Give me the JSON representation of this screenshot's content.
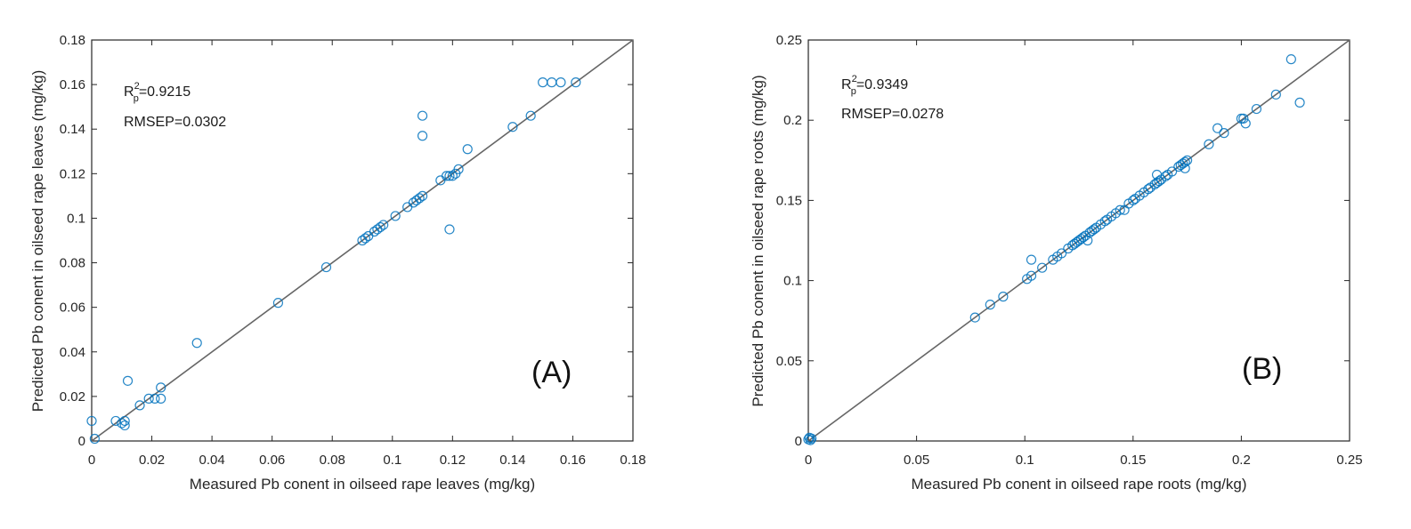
{
  "colors": {
    "marker": "#0072BD",
    "line": "#666666",
    "axis": "#262626"
  },
  "chart_data": [
    {
      "type": "scatter",
      "panel_label": "(A)",
      "xlabel": "Measured Pb conent in oilseed rape leaves (mg/kg)",
      "ylabel": "Predicted Pb conent in oilseed rape leaves (mg/kg)",
      "xlim": [
        0,
        0.18
      ],
      "ylim": [
        0,
        0.18
      ],
      "xticks": [
        0,
        0.02,
        0.04,
        0.06,
        0.08,
        0.1,
        0.12,
        0.14,
        0.16,
        0.18
      ],
      "yticks": [
        0,
        0.02,
        0.04,
        0.06,
        0.08,
        0.1,
        0.12,
        0.14,
        0.16,
        0.18
      ],
      "tick_labels": [
        "0",
        "0.02",
        "0.04",
        "0.06",
        "0.08",
        "0.1",
        "0.12",
        "0.14",
        "0.16",
        "0.18"
      ],
      "r2_label": "R",
      "r2_sup": "2",
      "r2_sub": "p",
      "r2_value": "=0.9215",
      "rmsep": "RMSEP=0.0302",
      "reference_line": "y = x",
      "points": [
        [
          0,
          0.009
        ],
        [
          0.001,
          0.001
        ],
        [
          0.008,
          0.009
        ],
        [
          0.01,
          0.008
        ],
        [
          0.011,
          0.007
        ],
        [
          0.011,
          0.009
        ],
        [
          0.012,
          0.027
        ],
        [
          0.016,
          0.016
        ],
        [
          0.019,
          0.019
        ],
        [
          0.021,
          0.019
        ],
        [
          0.023,
          0.019
        ],
        [
          0.023,
          0.024
        ],
        [
          0.035,
          0.044
        ],
        [
          0.062,
          0.062
        ],
        [
          0.078,
          0.078
        ],
        [
          0.09,
          0.09
        ],
        [
          0.091,
          0.091
        ],
        [
          0.092,
          0.092
        ],
        [
          0.094,
          0.094
        ],
        [
          0.095,
          0.095
        ],
        [
          0.096,
          0.096
        ],
        [
          0.097,
          0.097
        ],
        [
          0.101,
          0.101
        ],
        [
          0.105,
          0.105
        ],
        [
          0.107,
          0.107
        ],
        [
          0.108,
          0.108
        ],
        [
          0.109,
          0.109
        ],
        [
          0.11,
          0.11
        ],
        [
          0.11,
          0.146
        ],
        [
          0.11,
          0.137
        ],
        [
          0.116,
          0.117
        ],
        [
          0.118,
          0.119
        ],
        [
          0.119,
          0.095
        ],
        [
          0.119,
          0.119
        ],
        [
          0.12,
          0.119
        ],
        [
          0.121,
          0.12
        ],
        [
          0.122,
          0.122
        ],
        [
          0.125,
          0.131
        ],
        [
          0.14,
          0.141
        ],
        [
          0.146,
          0.146
        ],
        [
          0.15,
          0.161
        ],
        [
          0.153,
          0.161
        ],
        [
          0.156,
          0.161
        ],
        [
          0.161,
          0.161
        ]
      ]
    },
    {
      "type": "scatter",
      "panel_label": "(B)",
      "xlabel": "Measured Pb conent in oilseed rape roots (mg/kg)",
      "ylabel": "Predicted Pb conent in oilseed rape roots (mg/kg)",
      "xlim": [
        0,
        0.25
      ],
      "ylim": [
        0,
        0.25
      ],
      "xticks": [
        0,
        0.05,
        0.1,
        0.15,
        0.2,
        0.25
      ],
      "yticks": [
        0,
        0.05,
        0.1,
        0.15,
        0.2,
        0.25
      ],
      "tick_labels": [
        "0",
        "0.05",
        "0.1",
        "0.15",
        "0.2",
        "0.25"
      ],
      "r2_label": "R",
      "r2_sup": "2",
      "r2_sub": "p",
      "r2_value": "=0.9349",
      "rmsep": "RMSEP=0.0278",
      "reference_line": "y = x",
      "points": [
        [
          0,
          0.001
        ],
        [
          0.0005,
          0.002
        ],
        [
          0.001,
          0.0005
        ],
        [
          0.0015,
          0.0015
        ],
        [
          0.077,
          0.077
        ],
        [
          0.084,
          0.085
        ],
        [
          0.09,
          0.09
        ],
        [
          0.101,
          0.101
        ],
        [
          0.103,
          0.103
        ],
        [
          0.103,
          0.113
        ],
        [
          0.108,
          0.108
        ],
        [
          0.113,
          0.113
        ],
        [
          0.115,
          0.115
        ],
        [
          0.117,
          0.117
        ],
        [
          0.12,
          0.12
        ],
        [
          0.122,
          0.122
        ],
        [
          0.123,
          0.123
        ],
        [
          0.124,
          0.124
        ],
        [
          0.125,
          0.125
        ],
        [
          0.126,
          0.126
        ],
        [
          0.127,
          0.127
        ],
        [
          0.128,
          0.128
        ],
        [
          0.129,
          0.125
        ],
        [
          0.13,
          0.13
        ],
        [
          0.131,
          0.131
        ],
        [
          0.132,
          0.132
        ],
        [
          0.133,
          0.133
        ],
        [
          0.135,
          0.135
        ],
        [
          0.137,
          0.137
        ],
        [
          0.138,
          0.138
        ],
        [
          0.14,
          0.14
        ],
        [
          0.142,
          0.142
        ],
        [
          0.144,
          0.144
        ],
        [
          0.146,
          0.144
        ],
        [
          0.148,
          0.148
        ],
        [
          0.15,
          0.15
        ],
        [
          0.151,
          0.151
        ],
        [
          0.153,
          0.153
        ],
        [
          0.155,
          0.155
        ],
        [
          0.157,
          0.157
        ],
        [
          0.158,
          0.158
        ],
        [
          0.16,
          0.16
        ],
        [
          0.161,
          0.161
        ],
        [
          0.161,
          0.166
        ],
        [
          0.162,
          0.162
        ],
        [
          0.163,
          0.163
        ],
        [
          0.165,
          0.165
        ],
        [
          0.166,
          0.166
        ],
        [
          0.168,
          0.168
        ],
        [
          0.171,
          0.171
        ],
        [
          0.172,
          0.172
        ],
        [
          0.173,
          0.173
        ],
        [
          0.174,
          0.174
        ],
        [
          0.174,
          0.17
        ],
        [
          0.175,
          0.175
        ],
        [
          0.185,
          0.185
        ],
        [
          0.189,
          0.195
        ],
        [
          0.192,
          0.192
        ],
        [
          0.2,
          0.201
        ],
        [
          0.201,
          0.201
        ],
        [
          0.202,
          0.198
        ],
        [
          0.207,
          0.207
        ],
        [
          0.216,
          0.216
        ],
        [
          0.223,
          0.238
        ],
        [
          0.227,
          0.211
        ]
      ]
    }
  ]
}
